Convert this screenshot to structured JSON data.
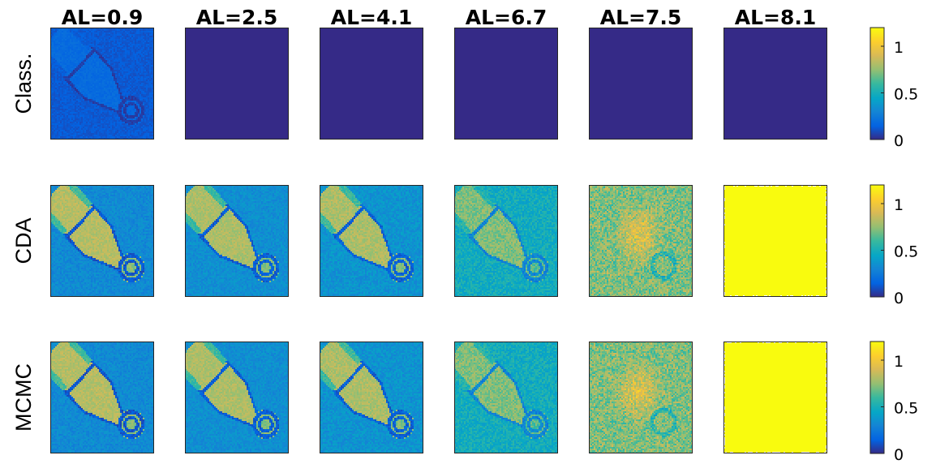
{
  "chart_data": {
    "type": "heatmap",
    "columns": [
      "AL=0.9",
      "AL=2.5",
      "AL=4.1",
      "AL=6.7",
      "AL=7.5",
      "AL=8.1"
    ],
    "rows": [
      "Class.",
      "CDA",
      "MCMC"
    ],
    "colormap": "parula",
    "colorbar": {
      "range": [
        0,
        1.2
      ],
      "ticks": [
        {
          "value": 0,
          "label": "0"
        },
        {
          "value": 0.5,
          "label": "0.5"
        },
        {
          "value": 1,
          "label": "1"
        }
      ]
    },
    "panels": [
      [
        {
          "style": "object",
          "bg": 0.12,
          "body": 0.18,
          "edge": 0.05,
          "noise": 0.03
        },
        {
          "style": "flat",
          "level": 0.0
        },
        {
          "style": "flat",
          "level": 0.0
        },
        {
          "style": "flat",
          "level": 0.0
        },
        {
          "style": "flat",
          "level": 0.0
        },
        {
          "style": "flat",
          "level": 0.0
        }
      ],
      [
        {
          "style": "object",
          "bg": 0.32,
          "body": 0.82,
          "edge": 0.12,
          "noise": 0.06
        },
        {
          "style": "object",
          "bg": 0.34,
          "body": 0.8,
          "edge": 0.14,
          "noise": 0.06
        },
        {
          "style": "object",
          "bg": 0.36,
          "body": 0.8,
          "edge": 0.15,
          "noise": 0.07
        },
        {
          "style": "object",
          "bg": 0.48,
          "body": 0.72,
          "edge": 0.3,
          "noise": 0.09
        },
        {
          "style": "blob",
          "bg": 0.72,
          "body": 0.95,
          "edge": 0.55,
          "noise": 0.13
        },
        {
          "style": "flat",
          "level": 1.2
        }
      ],
      [
        {
          "style": "object",
          "bg": 0.32,
          "body": 0.82,
          "edge": 0.12,
          "noise": 0.06
        },
        {
          "style": "object",
          "bg": 0.34,
          "body": 0.8,
          "edge": 0.14,
          "noise": 0.06
        },
        {
          "style": "object",
          "bg": 0.36,
          "body": 0.8,
          "edge": 0.15,
          "noise": 0.07
        },
        {
          "style": "object",
          "bg": 0.48,
          "body": 0.72,
          "edge": 0.3,
          "noise": 0.09
        },
        {
          "style": "blob",
          "bg": 0.72,
          "body": 0.95,
          "edge": 0.55,
          "noise": 0.13
        },
        {
          "style": "flat",
          "level": 1.2
        }
      ]
    ]
  }
}
